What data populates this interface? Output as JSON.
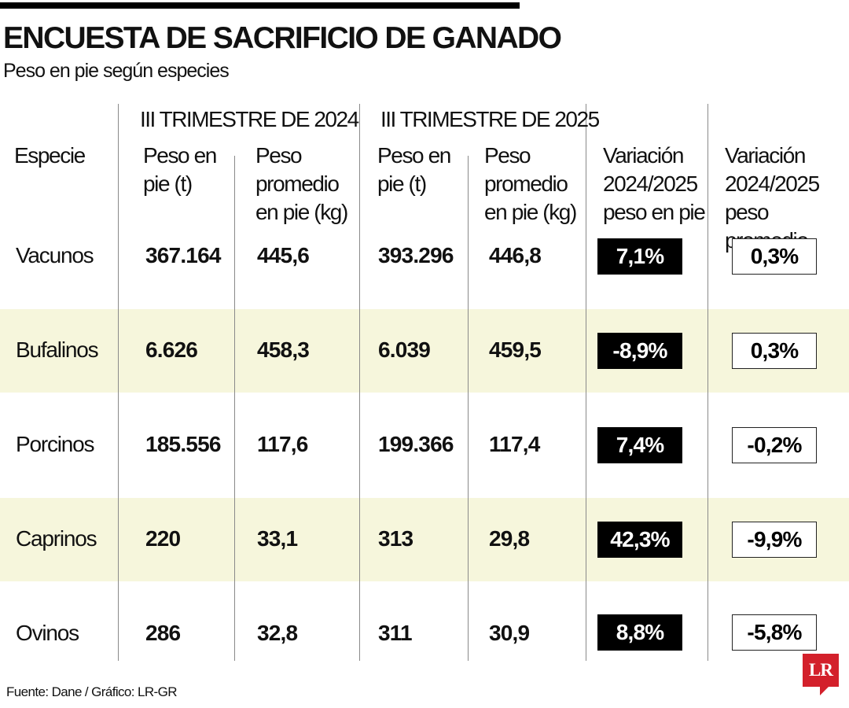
{
  "header": {
    "title": "ENCUESTA DE SACRIFICIO DE GANADO",
    "subtitle": "Peso en pie según especies"
  },
  "table": {
    "group_headers": [
      "III TRIMESTRE DE 2024",
      "III TRIMESTRE DE 2025"
    ],
    "columns": {
      "species": "Especie",
      "weight_2024": [
        "Peso en",
        "pie (t)"
      ],
      "avg_2024": [
        "Peso",
        "promedio",
        "en pie (kg)"
      ],
      "weight_2025": [
        "Peso en",
        "pie (t)"
      ],
      "avg_2025": [
        "Peso",
        "promedio",
        "en pie (kg)"
      ],
      "var_weight": [
        "Variación",
        "2024/2025",
        "peso en pie"
      ],
      "var_avg": [
        "Variación",
        "2024/2025",
        "peso promedio"
      ]
    },
    "rows": [
      {
        "species": "Vacunos",
        "weight_2024": "367.164",
        "avg_2024": "445,6",
        "weight_2025": "393.296",
        "avg_2025": "446,8",
        "var_weight": "7,1%",
        "var_avg": "0,3%"
      },
      {
        "species": "Bufalinos",
        "weight_2024": "6.626",
        "avg_2024": "458,3",
        "weight_2025": "6.039",
        "avg_2025": "459,5",
        "var_weight": "-8,9%",
        "var_avg": "0,3%"
      },
      {
        "species": "Porcinos",
        "weight_2024": "185.556",
        "avg_2024": "117,6",
        "weight_2025": "199.366",
        "avg_2025": "117,4",
        "var_weight": "7,4%",
        "var_avg": "-0,2%"
      },
      {
        "species": "Caprinos",
        "weight_2024": "220",
        "avg_2024": "33,1",
        "weight_2025": "313",
        "avg_2025": "29,8",
        "var_weight": "42,3%",
        "var_avg": "-9,9%"
      },
      {
        "species": "Ovinos",
        "weight_2024": "286",
        "avg_2024": "32,8",
        "weight_2025": "311",
        "avg_2025": "30,9",
        "var_weight": "8,8%",
        "var_avg": "-5,8%"
      }
    ]
  },
  "footer": {
    "source": "Fuente: Dane / Gráfico: LR-GR",
    "logo_text": "LR"
  },
  "colors": {
    "band": "#f6f6dc",
    "dark_box": "#000000",
    "logo": "#d3202b"
  },
  "chart_data": {
    "type": "table",
    "title": "ENCUESTA DE SACRIFICIO DE GANADO",
    "subtitle": "Peso en pie según especies",
    "columns": [
      "Especie",
      "Peso en pie (t)",
      "Peso promedio en pie (kg)",
      "Peso en pie (t)",
      "Peso promedio en pie (kg)",
      "Variación 2024/2025 peso en pie",
      "Variación 2024/2025 peso promedio"
    ],
    "column_groups": [
      {
        "name": "III TRIMESTRE DE 2024",
        "columns": [
          "Peso en pie (t)",
          "Peso promedio en pie (kg)"
        ]
      },
      {
        "name": "III TRIMESTRE DE 2025",
        "columns": [
          "Peso en pie (t)",
          "Peso promedio en pie (kg)"
        ]
      }
    ],
    "categories": [
      "Vacunos",
      "Bufalinos",
      "Porcinos",
      "Caprinos",
      "Ovinos"
    ],
    "series": [
      {
        "name": "III TRIMESTRE DE 2024 Peso en pie (t)",
        "values": [
          367164,
          6626,
          185556,
          220,
          286
        ]
      },
      {
        "name": "III TRIMESTRE DE 2024 Peso promedio en pie (kg)",
        "values": [
          445.6,
          458.3,
          117.6,
          33.1,
          32.8
        ]
      },
      {
        "name": "III TRIMESTRE DE 2025 Peso en pie (t)",
        "values": [
          393296,
          6039,
          199366,
          313,
          311
        ]
      },
      {
        "name": "III TRIMESTRE DE 2025 Peso promedio en pie (kg)",
        "values": [
          446.8,
          459.5,
          117.4,
          29.8,
          30.9
        ]
      },
      {
        "name": "Variación 2024/2025 peso en pie",
        "values": [
          7.1,
          -8.9,
          7.4,
          42.3,
          8.8
        ]
      },
      {
        "name": "Variación 2024/2025 peso promedio",
        "values": [
          0.3,
          0.3,
          -0.2,
          -9.9,
          -5.8
        ]
      }
    ]
  }
}
